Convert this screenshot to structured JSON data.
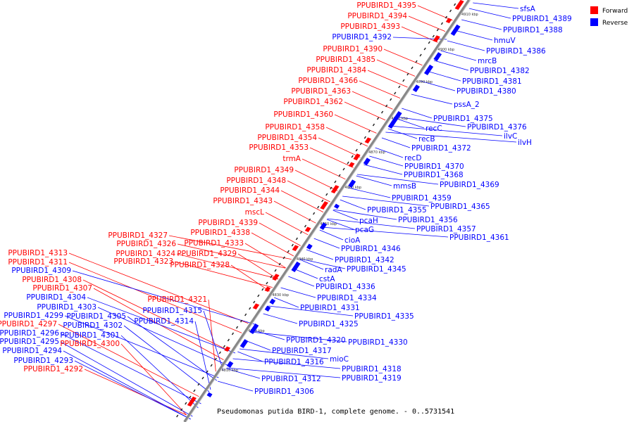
{
  "caption": "Pseudomonas putida BIRD-1, complete genome. - 0..5731541",
  "legend": [
    {
      "label": "Forward",
      "color": "#ff0000"
    },
    {
      "label": "Reverse",
      "color": "#0000ff"
    }
  ],
  "colors": {
    "forward": "#ff0000",
    "reverse": "#0000ff",
    "backbone": "#888888"
  },
  "ticks": [
    "4810 kbp",
    "4820 kbp",
    "4830 kbp",
    "4840 kbp",
    "4850 kbp",
    "4860 kbp",
    "4870 kbp",
    "4880 kbp",
    "4890 kbp",
    "4900 kbp",
    "4910 kbp"
  ],
  "forward_labels": [
    "PPUBIRD1_4395",
    "PPUBIRD1_4394",
    "PPUBIRD1_4393",
    "PPUBIRD1_4390",
    "PPUBIRD1_4385",
    "PPUBIRD1_4384",
    "PPUBIRD1_4366",
    "PPUBIRD1_4363",
    "PPUBIRD1_4362",
    "PPUBIRD1_4360",
    "PPUBIRD1_4358",
    "PPUBIRD1_4354",
    "PPUBIRD1_4353",
    "trmA",
    "PPUBIRD1_4349",
    "PPUBIRD1_4348",
    "PPUBIRD1_4344",
    "PPUBIRD1_4343",
    "mscL",
    "PPUBIRD1_4339",
    "PPUBIRD1_4338",
    "PPUBIRD1_4327",
    "PPUBIRD1_4326",
    "PPUBIRD1_4333",
    "PPUBIRD1_4324",
    "PPUBIRD1_4329",
    "PPUBIRD1_4323",
    "PPUBIRD1_4328",
    "PPUBIRD1_4313",
    "PPUBIRD1_4311",
    "PPUBIRD1_4308",
    "PPUBIRD1_4307",
    "PPUBIRD1_4321",
    "PPUBIRD1_4297",
    "PPUBIRD1_4300",
    "PPUBIRD1_4292"
  ],
  "reverse_labels_left": [
    "PPUBIRD1_4392",
    "PPUBIRD1_4309",
    "PPUBIRD1_4304",
    "PPUBIRD1_4303",
    "PPUBIRD1_4315",
    "PPUBIRD1_4299",
    "PPUBIRD1_4305",
    "PPUBIRD1_4302",
    "PPUBIRD1_4314",
    "PPUBIRD1_4296",
    "PPUBIRD1_4301",
    "PPUBIRD1_4295",
    "PPUBIRD1_4294",
    "PPUBIRD1_4293"
  ],
  "reverse_labels_right": [
    "sfsA",
    "PPUBIRD1_4389",
    "PPUBIRD1_4388",
    "hmuV",
    "PPUBIRD1_4386",
    "mrcB",
    "PPUBIRD1_4382",
    "PPUBIRD1_4381",
    "PPUBIRD1_4380",
    "pssA_2",
    "PPUBIRD1_4375",
    "PPUBIRD1_4376",
    "recC",
    "ilvC",
    "ilvH",
    "recB",
    "PPUBIRD1_4372",
    "recD",
    "PPUBIRD1_4370",
    "PPUBIRD1_4368",
    "mmsB",
    "PPUBIRD1_4369",
    "PPUBIRD1_4359",
    "PPUBIRD1_4365",
    "PPUBIRD1_4355",
    "PPUBIRD1_4356",
    "pcaH",
    "PPUBIRD1_4357",
    "pcaG",
    "PPUBIRD1_4361",
    "cioA",
    "PPUBIRD1_4346",
    "PPUBIRD1_4342",
    "radA",
    "PPUBIRD1_4345",
    "cstA",
    "PPUBIRD1_4336",
    "PPUBIRD1_4334",
    "PPUBIRD1_4331",
    "PPUBIRD1_4335",
    "PPUBIRD1_4325",
    "PPUBIRD1_4320",
    "PPUBIRD1_4330",
    "PPUBIRD1_4317",
    "mioC",
    "PPUBIRD1_4316",
    "PPUBIRD1_4318",
    "PPUBIRD1_4319",
    "PPUBIRD1_4312",
    "PPUBIRD1_4306"
  ]
}
